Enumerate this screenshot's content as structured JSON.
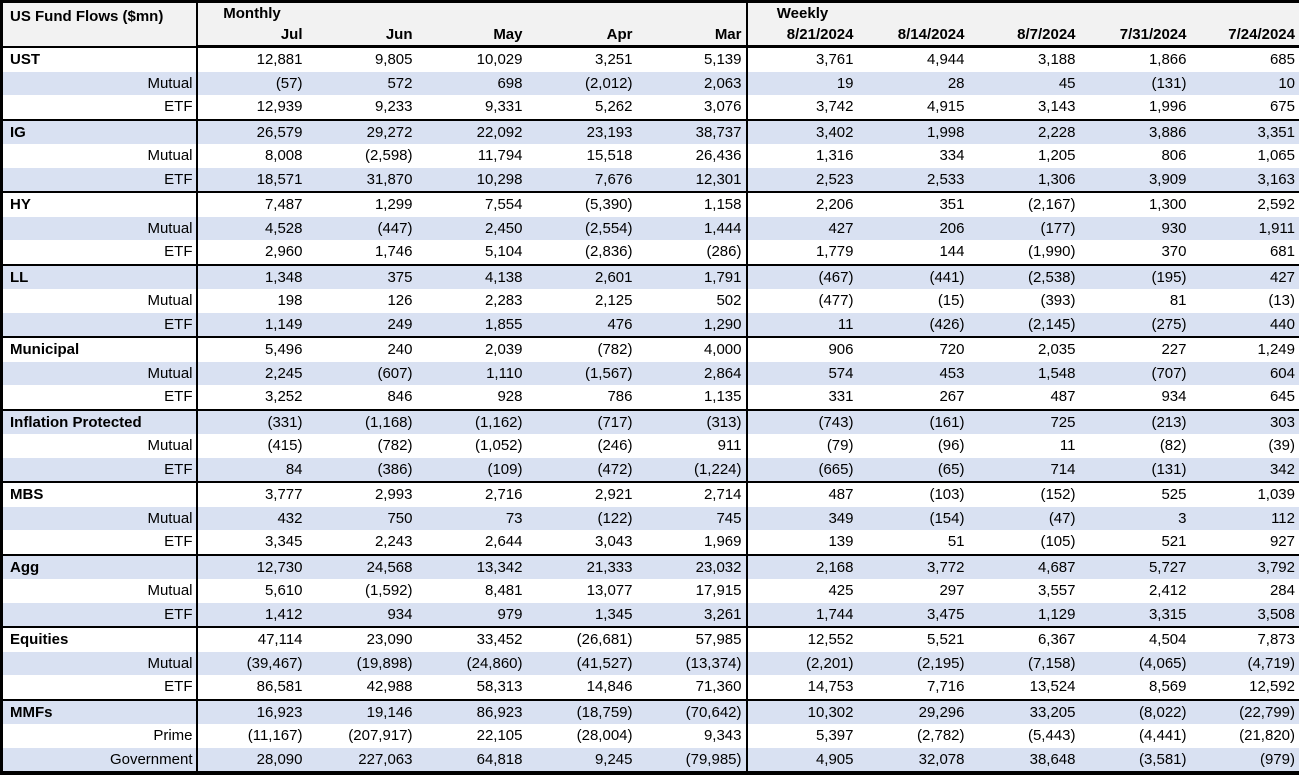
{
  "chart_data": {
    "type": "table",
    "title": "US Fund Flows ($mn)",
    "section_labels": {
      "monthly": "Monthly",
      "weekly": "Weekly"
    },
    "monthly_columns": [
      "Jul",
      "Jun",
      "May",
      "Apr",
      "Mar"
    ],
    "weekly_columns": [
      "8/21/2024",
      "8/14/2024",
      "8/7/2024",
      "7/31/2024",
      "7/24/2024"
    ],
    "negative_format": "parentheses",
    "colors": {
      "stripe": "#d9e1f2",
      "header_bg": "#f2f2f2",
      "border": "#000000",
      "text": "#000000"
    },
    "rows": [
      {
        "label": "UST",
        "group": true,
        "monthly": [
          "12,881",
          "9,805",
          "10,029",
          "3,251",
          "5,139"
        ],
        "weekly": [
          "3,761",
          "4,944",
          "3,188",
          "1,866",
          "685"
        ]
      },
      {
        "label": "Mutual",
        "group": false,
        "monthly": [
          "(57)",
          "572",
          "698",
          "(2,012)",
          "2,063"
        ],
        "weekly": [
          "19",
          "28",
          "45",
          "(131)",
          "10"
        ]
      },
      {
        "label": "ETF",
        "group": false,
        "monthly": [
          "12,939",
          "9,233",
          "9,331",
          "5,262",
          "3,076"
        ],
        "weekly": [
          "3,742",
          "4,915",
          "3,143",
          "1,996",
          "675"
        ]
      },
      {
        "label": "IG",
        "group": true,
        "monthly": [
          "26,579",
          "29,272",
          "22,092",
          "23,193",
          "38,737"
        ],
        "weekly": [
          "3,402",
          "1,998",
          "2,228",
          "3,886",
          "3,351"
        ]
      },
      {
        "label": "Mutual",
        "group": false,
        "monthly": [
          "8,008",
          "(2,598)",
          "11,794",
          "15,518",
          "26,436"
        ],
        "weekly": [
          "1,316",
          "334",
          "1,205",
          "806",
          "1,065"
        ]
      },
      {
        "label": "ETF",
        "group": false,
        "monthly": [
          "18,571",
          "31,870",
          "10,298",
          "7,676",
          "12,301"
        ],
        "weekly": [
          "2,523",
          "2,533",
          "1,306",
          "3,909",
          "3,163"
        ]
      },
      {
        "label": "HY",
        "group": true,
        "monthly": [
          "7,487",
          "1,299",
          "7,554",
          "(5,390)",
          "1,158"
        ],
        "weekly": [
          "2,206",
          "351",
          "(2,167)",
          "1,300",
          "2,592"
        ]
      },
      {
        "label": "Mutual",
        "group": false,
        "monthly": [
          "4,528",
          "(447)",
          "2,450",
          "(2,554)",
          "1,444"
        ],
        "weekly": [
          "427",
          "206",
          "(177)",
          "930",
          "1,911"
        ]
      },
      {
        "label": "ETF",
        "group": false,
        "monthly": [
          "2,960",
          "1,746",
          "5,104",
          "(2,836)",
          "(286)"
        ],
        "weekly": [
          "1,779",
          "144",
          "(1,990)",
          "370",
          "681"
        ]
      },
      {
        "label": "LL",
        "group": true,
        "monthly": [
          "1,348",
          "375",
          "4,138",
          "2,601",
          "1,791"
        ],
        "weekly": [
          "(467)",
          "(441)",
          "(2,538)",
          "(195)",
          "427"
        ]
      },
      {
        "label": "Mutual",
        "group": false,
        "monthly": [
          "198",
          "126",
          "2,283",
          "2,125",
          "502"
        ],
        "weekly": [
          "(477)",
          "(15)",
          "(393)",
          "81",
          "(13)"
        ]
      },
      {
        "label": "ETF",
        "group": false,
        "monthly": [
          "1,149",
          "249",
          "1,855",
          "476",
          "1,290"
        ],
        "weekly": [
          "11",
          "(426)",
          "(2,145)",
          "(275)",
          "440"
        ]
      },
      {
        "label": "Municipal",
        "group": true,
        "monthly": [
          "5,496",
          "240",
          "2,039",
          "(782)",
          "4,000"
        ],
        "weekly": [
          "906",
          "720",
          "2,035",
          "227",
          "1,249"
        ]
      },
      {
        "label": "Mutual",
        "group": false,
        "monthly": [
          "2,245",
          "(607)",
          "1,110",
          "(1,567)",
          "2,864"
        ],
        "weekly": [
          "574",
          "453",
          "1,548",
          "(707)",
          "604"
        ]
      },
      {
        "label": "ETF",
        "group": false,
        "monthly": [
          "3,252",
          "846",
          "928",
          "786",
          "1,135"
        ],
        "weekly": [
          "331",
          "267",
          "487",
          "934",
          "645"
        ]
      },
      {
        "label": "Inflation Protected",
        "group": true,
        "monthly": [
          "(331)",
          "(1,168)",
          "(1,162)",
          "(717)",
          "(313)"
        ],
        "weekly": [
          "(743)",
          "(161)",
          "725",
          "(213)",
          "303"
        ]
      },
      {
        "label": "Mutual",
        "group": false,
        "monthly": [
          "(415)",
          "(782)",
          "(1,052)",
          "(246)",
          "911"
        ],
        "weekly": [
          "(79)",
          "(96)",
          "11",
          "(82)",
          "(39)"
        ]
      },
      {
        "label": "ETF",
        "group": false,
        "monthly": [
          "84",
          "(386)",
          "(109)",
          "(472)",
          "(1,224)"
        ],
        "weekly": [
          "(665)",
          "(65)",
          "714",
          "(131)",
          "342"
        ]
      },
      {
        "label": "MBS",
        "group": true,
        "monthly": [
          "3,777",
          "2,993",
          "2,716",
          "2,921",
          "2,714"
        ],
        "weekly": [
          "487",
          "(103)",
          "(152)",
          "525",
          "1,039"
        ]
      },
      {
        "label": "Mutual",
        "group": false,
        "monthly": [
          "432",
          "750",
          "73",
          "(122)",
          "745"
        ],
        "weekly": [
          "349",
          "(154)",
          "(47)",
          "3",
          "112"
        ]
      },
      {
        "label": "ETF",
        "group": false,
        "monthly": [
          "3,345",
          "2,243",
          "2,644",
          "3,043",
          "1,969"
        ],
        "weekly": [
          "139",
          "51",
          "(105)",
          "521",
          "927"
        ]
      },
      {
        "label": "Agg",
        "group": true,
        "monthly": [
          "12,730",
          "24,568",
          "13,342",
          "21,333",
          "23,032"
        ],
        "weekly": [
          "2,168",
          "3,772",
          "4,687",
          "5,727",
          "3,792"
        ]
      },
      {
        "label": "Mutual",
        "group": false,
        "monthly": [
          "5,610",
          "(1,592)",
          "8,481",
          "13,077",
          "17,915"
        ],
        "weekly": [
          "425",
          "297",
          "3,557",
          "2,412",
          "284"
        ]
      },
      {
        "label": "ETF",
        "group": false,
        "monthly": [
          "1,412",
          "934",
          "979",
          "1,345",
          "3,261"
        ],
        "weekly": [
          "1,744",
          "3,475",
          "1,129",
          "3,315",
          "3,508"
        ]
      },
      {
        "label": "Equities",
        "group": true,
        "monthly": [
          "47,114",
          "23,090",
          "33,452",
          "(26,681)",
          "57,985"
        ],
        "weekly": [
          "12,552",
          "5,521",
          "6,367",
          "4,504",
          "7,873"
        ]
      },
      {
        "label": "Mutual",
        "group": false,
        "monthly": [
          "(39,467)",
          "(19,898)",
          "(24,860)",
          "(41,527)",
          "(13,374)"
        ],
        "weekly": [
          "(2,201)",
          "(2,195)",
          "(7,158)",
          "(4,065)",
          "(4,719)"
        ]
      },
      {
        "label": "ETF",
        "group": false,
        "monthly": [
          "86,581",
          "42,988",
          "58,313",
          "14,846",
          "71,360"
        ],
        "weekly": [
          "14,753",
          "7,716",
          "13,524",
          "8,569",
          "12,592"
        ]
      },
      {
        "label": "MMFs",
        "group": true,
        "monthly": [
          "16,923",
          "19,146",
          "86,923",
          "(18,759)",
          "(70,642)"
        ],
        "weekly": [
          "10,302",
          "29,296",
          "33,205",
          "(8,022)",
          "(22,799)"
        ]
      },
      {
        "label": "Prime",
        "group": false,
        "monthly": [
          "(11,167)",
          "(207,917)",
          "22,105",
          "(28,004)",
          "9,343"
        ],
        "weekly": [
          "5,397",
          "(2,782)",
          "(5,443)",
          "(4,441)",
          "(21,820)"
        ]
      },
      {
        "label": "Government",
        "group": false,
        "monthly": [
          "28,090",
          "227,063",
          "64,818",
          "9,245",
          "(79,985)"
        ],
        "weekly": [
          "4,905",
          "32,078",
          "38,648",
          "(3,581)",
          "(979)"
        ]
      }
    ]
  }
}
